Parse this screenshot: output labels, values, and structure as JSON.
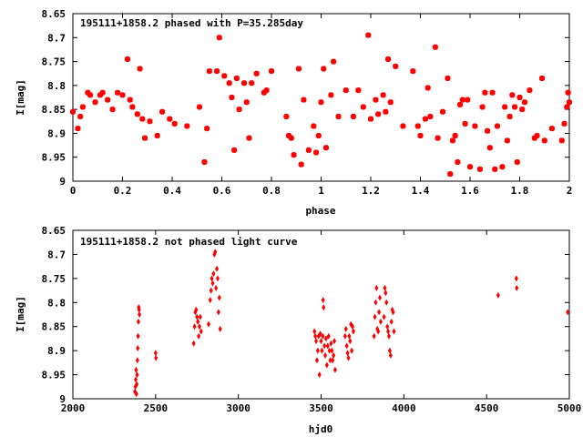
{
  "chart_data": [
    {
      "type": "scatter",
      "title": "195111+1858.2 phased with P=35.285day",
      "xlabel": "phase",
      "ylabel": "I[mag]",
      "xlim": [
        0,
        2
      ],
      "ylim": [
        8.65,
        9
      ],
      "y_inverted": true,
      "xticks": [
        "0",
        "0.2",
        "0.4",
        "0.6",
        "0.8",
        "1",
        "1.2",
        "1.4",
        "1.6",
        "1.8",
        "2"
      ],
      "yticks": [
        "8.65",
        "8.7",
        "8.75",
        "8.8",
        "8.85",
        "8.9",
        "8.95",
        "9"
      ],
      "grid": false,
      "marker_color": "#ff0000",
      "marker": "filled-square",
      "points": [
        [
          0.0,
          8.855
        ],
        [
          0.02,
          8.89
        ],
        [
          0.03,
          8.865
        ],
        [
          0.04,
          8.845
        ],
        [
          0.06,
          8.815
        ],
        [
          0.07,
          8.82
        ],
        [
          0.09,
          8.835
        ],
        [
          0.11,
          8.82
        ],
        [
          0.12,
          8.815
        ],
        [
          0.14,
          8.83
        ],
        [
          0.16,
          8.85
        ],
        [
          0.18,
          8.815
        ],
        [
          0.2,
          8.82
        ],
        [
          0.22,
          8.745
        ],
        [
          0.23,
          8.83
        ],
        [
          0.24,
          8.845
        ],
        [
          0.26,
          8.86
        ],
        [
          0.27,
          8.765
        ],
        [
          0.28,
          8.87
        ],
        [
          0.29,
          8.91
        ],
        [
          0.31,
          8.875
        ],
        [
          0.34,
          8.905
        ],
        [
          0.36,
          8.855
        ],
        [
          0.39,
          8.87
        ],
        [
          0.41,
          8.88
        ],
        [
          0.46,
          8.885
        ],
        [
          0.51,
          8.845
        ],
        [
          0.53,
          8.96
        ],
        [
          0.55,
          8.77
        ],
        [
          0.54,
          8.89
        ],
        [
          0.58,
          8.77
        ],
        [
          0.59,
          8.7
        ],
        [
          0.61,
          8.78
        ],
        [
          0.63,
          8.795
        ],
        [
          0.64,
          8.825
        ],
        [
          0.65,
          8.935
        ],
        [
          0.66,
          8.785
        ],
        [
          0.67,
          8.85
        ],
        [
          0.69,
          8.795
        ],
        [
          0.7,
          8.835
        ],
        [
          0.71,
          8.91
        ],
        [
          0.72,
          8.795
        ],
        [
          0.74,
          8.775
        ],
        [
          0.77,
          8.815
        ],
        [
          0.78,
          8.81
        ],
        [
          0.8,
          8.77
        ],
        [
          0.86,
          8.865
        ],
        [
          0.87,
          8.905
        ],
        [
          0.88,
          8.91
        ],
        [
          0.89,
          8.945
        ],
        [
          0.91,
          8.765
        ],
        [
          0.92,
          8.965
        ],
        [
          0.93,
          8.83
        ],
        [
          0.95,
          8.935
        ],
        [
          0.97,
          8.885
        ],
        [
          0.98,
          8.94
        ],
        [
          0.99,
          8.905
        ],
        [
          1.0,
          8.835
        ],
        [
          1.01,
          8.765
        ],
        [
          1.02,
          8.93
        ],
        [
          1.04,
          8.82
        ],
        [
          1.05,
          8.75
        ],
        [
          1.07,
          8.865
        ],
        [
          1.1,
          8.81
        ],
        [
          1.13,
          8.865
        ],
        [
          1.15,
          8.81
        ],
        [
          1.17,
          8.845
        ],
        [
          1.19,
          8.695
        ],
        [
          1.2,
          8.87
        ],
        [
          1.22,
          8.83
        ],
        [
          1.23,
          8.86
        ],
        [
          1.25,
          8.82
        ],
        [
          1.26,
          8.855
        ],
        [
          1.27,
          8.745
        ],
        [
          1.28,
          8.835
        ],
        [
          1.3,
          8.76
        ],
        [
          1.33,
          8.885
        ],
        [
          1.37,
          8.77
        ],
        [
          1.39,
          8.885
        ],
        [
          1.4,
          8.905
        ],
        [
          1.42,
          8.87
        ],
        [
          1.43,
          8.805
        ],
        [
          1.44,
          8.865
        ],
        [
          1.46,
          8.72
        ],
        [
          1.47,
          8.91
        ],
        [
          1.49,
          8.855
        ],
        [
          1.51,
          8.785
        ],
        [
          1.52,
          8.985
        ],
        [
          1.53,
          8.915
        ],
        [
          1.54,
          8.905
        ],
        [
          1.55,
          8.96
        ],
        [
          1.56,
          8.84
        ],
        [
          1.57,
          8.83
        ],
        [
          1.58,
          8.88
        ],
        [
          1.59,
          8.83
        ],
        [
          1.6,
          8.97
        ],
        [
          1.62,
          8.885
        ],
        [
          1.64,
          8.975
        ],
        [
          1.65,
          8.845
        ],
        [
          1.66,
          8.815
        ],
        [
          1.67,
          8.895
        ],
        [
          1.68,
          8.93
        ],
        [
          1.69,
          8.815
        ],
        [
          1.7,
          8.975
        ],
        [
          1.71,
          8.885
        ],
        [
          1.73,
          8.97
        ],
        [
          1.74,
          8.845
        ],
        [
          1.75,
          8.915
        ],
        [
          1.76,
          8.865
        ],
        [
          1.77,
          8.82
        ],
        [
          1.78,
          8.845
        ],
        [
          1.79,
          8.96
        ],
        [
          1.8,
          8.825
        ],
        [
          1.81,
          8.85
        ],
        [
          1.82,
          8.835
        ],
        [
          1.84,
          8.81
        ],
        [
          1.86,
          8.91
        ],
        [
          1.87,
          8.905
        ],
        [
          1.89,
          8.785
        ],
        [
          1.9,
          8.915
        ],
        [
          1.93,
          8.89
        ],
        [
          1.97,
          8.915
        ],
        [
          1.98,
          8.88
        ],
        [
          1.99,
          8.845
        ],
        [
          1.995,
          8.815
        ],
        [
          2.0,
          8.835
        ]
      ]
    },
    {
      "type": "scatter",
      "title": "195111+1858.2 not phased light curve",
      "xlabel": "hjd0",
      "ylabel": "I[mag]",
      "xlim": [
        2000,
        5000
      ],
      "ylim": [
        8.65,
        9
      ],
      "y_inverted": true,
      "xticks": [
        "2000",
        "2500",
        "3000",
        "3500",
        "4000",
        "4500",
        "5000"
      ],
      "yticks": [
        "8.65",
        "8.7",
        "8.75",
        "8.8",
        "8.85",
        "8.9",
        "8.95",
        "9"
      ],
      "grid": false,
      "marker_color": "#ff0000",
      "marker": "filled-diamond",
      "points": [
        [
          2375,
          8.985
        ],
        [
          2378,
          8.975
        ],
        [
          2380,
          8.96
        ],
        [
          2382,
          8.94
        ],
        [
          2384,
          8.99
        ],
        [
          2386,
          8.97
        ],
        [
          2388,
          8.95
        ],
        [
          2390,
          8.92
        ],
        [
          2392,
          8.895
        ],
        [
          2394,
          8.87
        ],
        [
          2396,
          8.84
        ],
        [
          2398,
          8.81
        ],
        [
          2400,
          8.815
        ],
        [
          2402,
          8.825
        ],
        [
          2500,
          8.905
        ],
        [
          2502,
          8.915
        ],
        [
          2730,
          8.885
        ],
        [
          2735,
          8.85
        ],
        [
          2740,
          8.82
        ],
        [
          2745,
          8.815
        ],
        [
          2750,
          8.83
        ],
        [
          2755,
          8.84
        ],
        [
          2760,
          8.87
        ],
        [
          2765,
          8.85
        ],
        [
          2770,
          8.83
        ],
        [
          2775,
          8.86
        ],
        [
          2820,
          8.845
        ],
        [
          2830,
          8.795
        ],
        [
          2835,
          8.775
        ],
        [
          2840,
          8.75
        ],
        [
          2845,
          8.76
        ],
        [
          2850,
          8.74
        ],
        [
          2855,
          8.7
        ],
        [
          2860,
          8.695
        ],
        [
          2865,
          8.77
        ],
        [
          2870,
          8.73
        ],
        [
          2875,
          8.75
        ],
        [
          2880,
          8.82
        ],
        [
          2885,
          8.79
        ],
        [
          2890,
          8.855
        ],
        [
          3460,
          8.86
        ],
        [
          3465,
          8.87
        ],
        [
          3470,
          8.88
        ],
        [
          3475,
          8.92
        ],
        [
          3480,
          8.9
        ],
        [
          3485,
          8.87
        ],
        [
          3490,
          8.95
        ],
        [
          3495,
          8.865
        ],
        [
          3500,
          8.88
        ],
        [
          3505,
          8.9
        ],
        [
          3510,
          8.87
        ],
        [
          3512,
          8.795
        ],
        [
          3515,
          8.81
        ],
        [
          3520,
          8.89
        ],
        [
          3525,
          8.91
        ],
        [
          3530,
          8.875
        ],
        [
          3535,
          8.93
        ],
        [
          3540,
          8.89
        ],
        [
          3545,
          8.87
        ],
        [
          3550,
          8.9
        ],
        [
          3555,
          8.92
        ],
        [
          3560,
          8.885
        ],
        [
          3565,
          8.9
        ],
        [
          3570,
          8.92
        ],
        [
          3575,
          8.91
        ],
        [
          3580,
          8.88
        ],
        [
          3585,
          8.94
        ],
        [
          3645,
          8.87
        ],
        [
          3650,
          8.855
        ],
        [
          3655,
          8.89
        ],
        [
          3660,
          8.905
        ],
        [
          3665,
          8.915
        ],
        [
          3670,
          8.87
        ],
        [
          3675,
          8.88
        ],
        [
          3680,
          8.845
        ],
        [
          3685,
          8.9
        ],
        [
          3690,
          8.85
        ],
        [
          3695,
          8.86
        ],
        [
          3820,
          8.87
        ],
        [
          3825,
          8.83
        ],
        [
          3830,
          8.8
        ],
        [
          3835,
          8.77
        ],
        [
          3840,
          8.855
        ],
        [
          3845,
          8.86
        ],
        [
          3850,
          8.82
        ],
        [
          3855,
          8.79
        ],
        [
          3860,
          8.84
        ],
        [
          3880,
          8.83
        ],
        [
          3885,
          8.77
        ],
        [
          3890,
          8.78
        ],
        [
          3895,
          8.8
        ],
        [
          3900,
          8.85
        ],
        [
          3905,
          8.86
        ],
        [
          3910,
          8.87
        ],
        [
          3915,
          8.9
        ],
        [
          3920,
          8.91
        ],
        [
          3925,
          8.84
        ],
        [
          3930,
          8.815
        ],
        [
          3935,
          8.82
        ],
        [
          3940,
          8.86
        ],
        [
          4570,
          8.785
        ],
        [
          4680,
          8.75
        ],
        [
          4682,
          8.77
        ],
        [
          4990,
          8.82
        ]
      ]
    }
  ]
}
